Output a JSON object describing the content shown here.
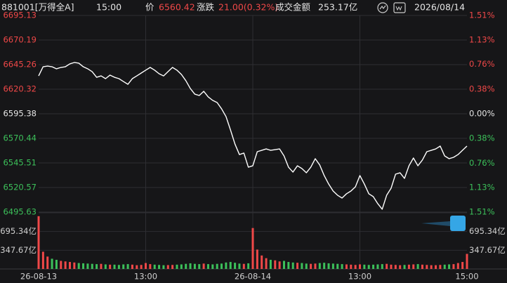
{
  "chart_data": {
    "type": "line",
    "title": "881001[万得全A]",
    "header": {
      "time": "15:00",
      "price_label": "价",
      "price": "6560.42",
      "change_label": "涨跌",
      "change": "21.00(0.32%)",
      "amount_label": "成交金额",
      "amount": "253.17亿",
      "date": "2026/08/14"
    },
    "categories": [
      "26-08-13",
      null,
      null,
      null,
      null,
      null,
      null,
      null,
      null,
      null,
      null,
      null,
      null,
      null,
      null,
      null,
      null,
      null,
      null,
      null,
      null,
      null,
      null,
      null,
      "13:00",
      null,
      null,
      null,
      null,
      null,
      null,
      null,
      null,
      null,
      null,
      null,
      null,
      null,
      null,
      null,
      null,
      null,
      null,
      null,
      null,
      null,
      null,
      null,
      "26-08-14",
      null,
      null,
      null,
      null,
      null,
      null,
      null,
      null,
      null,
      null,
      null,
      null,
      null,
      null,
      null,
      null,
      null,
      null,
      null,
      null,
      null,
      null,
      null,
      "13:00",
      null,
      null,
      null,
      null,
      null,
      null,
      null,
      null,
      null,
      null,
      null,
      null,
      null,
      null,
      null,
      null,
      null,
      null,
      null,
      null,
      null,
      null,
      null,
      "15:00"
    ],
    "series": [
      {
        "color": "#ffffff",
        "values": [
          6633.8,
          6643.1,
          6643.8,
          6643.1,
          6641.0,
          6642.4,
          6643.1,
          6646.0,
          6647.4,
          6646.7,
          6643.1,
          6641.0,
          6638.1,
          6632.4,
          6633.8,
          6631.0,
          6634.6,
          6632.4,
          6631.0,
          6628.1,
          6625.3,
          6631.0,
          6633.8,
          6636.7,
          6639.6,
          6642.4,
          6639.6,
          6636.0,
          6633.8,
          6638.1,
          6642.4,
          6639.6,
          6635.3,
          6628.9,
          6621.0,
          6615.3,
          6613.9,
          6618.2,
          6612.5,
          6609.0,
          6606.8,
          6600.4,
          6592.5,
          6579.0,
          6564.7,
          6554.0,
          6555.5,
          6541.2,
          6542.6,
          6556.9,
          6558.3,
          6559.7,
          6558.3,
          6559.0,
          6559.7,
          6552.6,
          6541.2,
          6536.2,
          6542.6,
          6539.8,
          6535.5,
          6541.2,
          6549.8,
          6543.4,
          6532.7,
          6524.1,
          6517.0,
          6512.7,
          6509.9,
          6514.2,
          6517.0,
          6521.3,
          6532.7,
          6524.1,
          6514.2,
          6511.3,
          6504.2,
          6498.5,
          6512.7,
          6519.9,
          6534.1,
          6535.5,
          6529.8,
          6542.6,
          6550.5,
          6542.6,
          6548.4,
          6556.9,
          6558.3,
          6559.7,
          6562.6,
          6552.6,
          6549.8,
          6551.2,
          6554.0,
          6558.3,
          6562.6
        ]
      }
    ],
    "ylim": [
      6495.63,
      6695.13
    ],
    "yticks": [
      6695.13,
      6670.19,
      6645.26,
      6620.32,
      6595.38,
      6570.44,
      6545.51,
      6520.57,
      6495.63
    ],
    "y2lim": [
      -1.51,
      1.51
    ],
    "y2ticks": [
      {
        "value": 1.51,
        "label": "1.51%"
      },
      {
        "value": 1.13,
        "label": "1.13%"
      },
      {
        "value": 0.76,
        "label": "0.76%"
      },
      {
        "value": 0.38,
        "label": "0.38%"
      },
      {
        "value": 0,
        "label": "0.00%"
      },
      {
        "value": -0.38,
        "label": "0.38%"
      },
      {
        "value": -0.76,
        "label": "0.76%"
      },
      {
        "value": -1.13,
        "label": "1.13%"
      },
      {
        "value": -1.51,
        "label": "1.51%"
      }
    ],
    "up_color": "#f04848",
    "down_color": "#3cc05a",
    "grid": true,
    "volume": {
      "ylim": [
        0,
        1043.01
      ],
      "yticks": [
        {
          "value": 695.34,
          "label": "695.34亿"
        },
        {
          "value": 347.67,
          "label": "347.67亿"
        }
      ],
      "values": [
        980,
        320,
        230,
        190,
        170,
        150,
        140,
        130,
        120,
        110,
        105,
        100,
        95,
        90,
        95,
        85,
        80,
        80,
        75,
        85,
        90,
        80,
        70,
        75,
        110,
        90,
        80,
        75,
        70,
        72,
        75,
        80,
        85,
        95,
        105,
        95,
        90,
        100,
        90,
        85,
        95,
        100,
        120,
        130,
        115,
        100,
        95,
        105,
        760,
        360,
        250,
        200,
        170,
        160,
        140,
        150,
        130,
        120,
        115,
        110,
        100,
        95,
        100,
        110,
        115,
        105,
        100,
        95,
        90,
        85,
        80,
        75,
        85,
        80,
        75,
        80,
        85,
        90,
        95,
        80,
        75,
        70,
        75,
        80,
        85,
        90,
        80,
        75,
        70,
        70,
        75,
        80,
        85,
        90,
        110,
        130,
        280
      ]
    }
  }
}
